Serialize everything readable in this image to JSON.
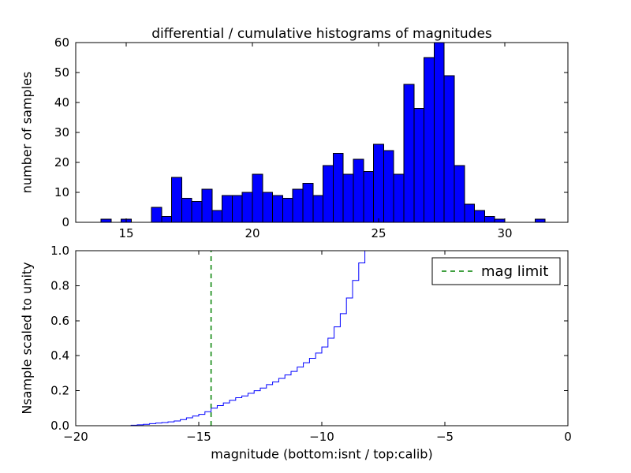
{
  "figure": {
    "title": "differential / cumulative histograms of magnitudes",
    "background_color": "#ffffff"
  },
  "chart_data": [
    {
      "type": "bar",
      "name": "differential-histogram",
      "ylabel": "number of samples",
      "xlim": [
        13,
        32.5
      ],
      "ylim": [
        0,
        60
      ],
      "xticks": [
        15,
        20,
        25,
        30
      ],
      "xticklabels": [
        "15",
        "20",
        "25",
        "30"
      ],
      "yticks": [
        0,
        10,
        20,
        30,
        40,
        50,
        60
      ],
      "yticklabels": [
        "0",
        "10",
        "20",
        "30",
        "40",
        "50",
        "60"
      ],
      "grid": false,
      "bin_width": 0.4,
      "bar_color": "#0000ff",
      "bar_edge_color": "#000000",
      "bars": [
        [
          14.0,
          1
        ],
        [
          14.8,
          1
        ],
        [
          16.0,
          5
        ],
        [
          16.4,
          2
        ],
        [
          16.8,
          15
        ],
        [
          17.2,
          8
        ],
        [
          17.6,
          7
        ],
        [
          18.0,
          11
        ],
        [
          18.4,
          4
        ],
        [
          18.8,
          9
        ],
        [
          19.2,
          9
        ],
        [
          19.6,
          10
        ],
        [
          20.0,
          16
        ],
        [
          20.4,
          10
        ],
        [
          20.8,
          9
        ],
        [
          21.2,
          8
        ],
        [
          21.6,
          11
        ],
        [
          22.0,
          13
        ],
        [
          22.4,
          9
        ],
        [
          22.8,
          19
        ],
        [
          23.2,
          23
        ],
        [
          23.6,
          16
        ],
        [
          24.0,
          21
        ],
        [
          24.4,
          17
        ],
        [
          24.8,
          26
        ],
        [
          25.2,
          24
        ],
        [
          25.6,
          16
        ],
        [
          26.0,
          46
        ],
        [
          26.4,
          38
        ],
        [
          26.8,
          55
        ],
        [
          27.2,
          60
        ],
        [
          27.6,
          49
        ],
        [
          28.0,
          19
        ],
        [
          28.4,
          6
        ],
        [
          28.8,
          4
        ],
        [
          29.2,
          2
        ],
        [
          29.6,
          1
        ],
        [
          31.2,
          1
        ]
      ]
    },
    {
      "type": "line",
      "name": "cumulative-histogram",
      "ylabel": "Nsample scaled to unity",
      "xlabel": "magnitude (bottom:isnt / top:calib)",
      "xlim": [
        -20,
        0
      ],
      "ylim": [
        0.0,
        1.0
      ],
      "xticks": [
        -20,
        -15,
        -10,
        -5,
        0
      ],
      "xticklabels": [
        "−20",
        "−15",
        "−10",
        "−5",
        "0"
      ],
      "yticks": [
        0.0,
        0.2,
        0.4,
        0.6,
        0.8,
        1.0
      ],
      "yticklabels": [
        "0.0",
        "0.2",
        "0.4",
        "0.6",
        "0.8",
        "1.0"
      ],
      "grid": false,
      "step": true,
      "line_color": "#0000ff",
      "points": [
        [
          -17.75,
          0.003
        ],
        [
          -17.5,
          0.005
        ],
        [
          -17.25,
          0.008
        ],
        [
          -17.0,
          0.012
        ],
        [
          -16.75,
          0.015
        ],
        [
          -16.5,
          0.018
        ],
        [
          -16.25,
          0.022
        ],
        [
          -16.0,
          0.027
        ],
        [
          -15.75,
          0.035
        ],
        [
          -15.5,
          0.045
        ],
        [
          -15.25,
          0.055
        ],
        [
          -15.0,
          0.065
        ],
        [
          -14.75,
          0.08
        ],
        [
          -14.5,
          0.1
        ],
        [
          -14.25,
          0.115
        ],
        [
          -14.0,
          0.13
        ],
        [
          -13.75,
          0.145
        ],
        [
          -13.5,
          0.16
        ],
        [
          -13.25,
          0.17
        ],
        [
          -13.0,
          0.185
        ],
        [
          -12.75,
          0.2
        ],
        [
          -12.5,
          0.215
        ],
        [
          -12.25,
          0.235
        ],
        [
          -12.0,
          0.25
        ],
        [
          -11.75,
          0.27
        ],
        [
          -11.5,
          0.29
        ],
        [
          -11.25,
          0.31
        ],
        [
          -11.0,
          0.335
        ],
        [
          -10.75,
          0.36
        ],
        [
          -10.5,
          0.385
        ],
        [
          -10.25,
          0.415
        ],
        [
          -10.0,
          0.45
        ],
        [
          -9.75,
          0.5
        ],
        [
          -9.5,
          0.565
        ],
        [
          -9.25,
          0.64
        ],
        [
          -9.0,
          0.73
        ],
        [
          -8.75,
          0.83
        ],
        [
          -8.5,
          0.93
        ],
        [
          -8.25,
          1.0
        ]
      ],
      "vline": {
        "x": -14.5,
        "color": "#008000",
        "style": "dashed"
      },
      "legend": {
        "label": "mag limit",
        "position": "upper right"
      }
    }
  ]
}
